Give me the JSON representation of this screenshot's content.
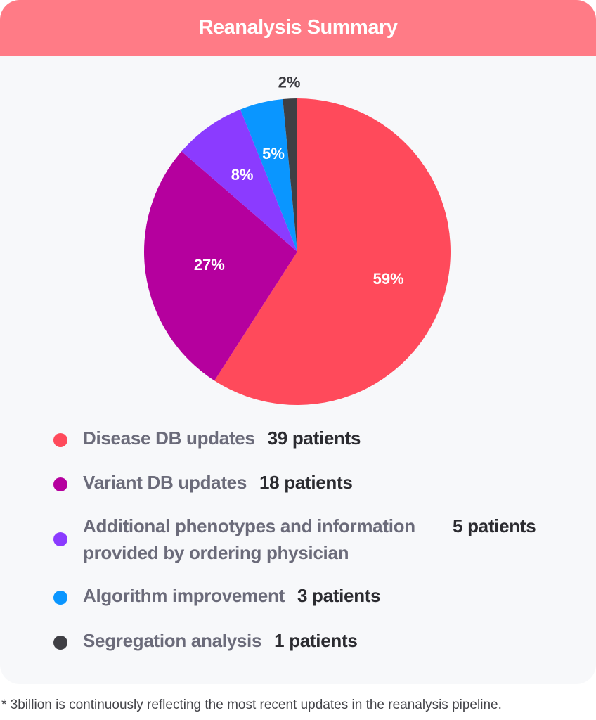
{
  "header": {
    "title": "Reanalysis Summary"
  },
  "chart_data": {
    "type": "pie",
    "slices": [
      {
        "label": "Disease DB updates",
        "value": 39,
        "value_label": "39 patients",
        "percent_label": "59%",
        "color": "#ff4a5b"
      },
      {
        "label": "Variant DB updates",
        "value": 18,
        "value_label": "18 patients",
        "percent_label": "27%",
        "color": "#b5009e"
      },
      {
        "label": "Additional phenotypes and information provided by ordering physician",
        "value": 5,
        "value_label": "5 patients",
        "percent_label": "8%",
        "color": "#8b3bff"
      },
      {
        "label": "Algorithm improvement",
        "value": 3,
        "value_label": "3 patients",
        "percent_label": "5%",
        "color": "#0a96ff"
      },
      {
        "label": "Segregation analysis",
        "value": 1,
        "value_label": "1 patients",
        "percent_label": "2%",
        "color": "#3f3f44"
      }
    ]
  },
  "legend": {
    "items": [
      {
        "label": "Disease DB updates",
        "value": "39 patients",
        "color": "#ff4a5b"
      },
      {
        "label": "Variant DB updates",
        "value": "18 patients",
        "color": "#b5009e"
      },
      {
        "label": "Additional phenotypes and information provided by ordering physician",
        "value": "5 patients",
        "color": "#8b3bff"
      },
      {
        "label": "Algorithm improvement",
        "value": "3 patients",
        "color": "#0a96ff"
      },
      {
        "label": "Segregation analysis",
        "value": "1 patients",
        "color": "#3f3f44"
      }
    ]
  },
  "footnote": "* 3billion is continuously reflecting the most recent updates in the reanalysis pipeline."
}
